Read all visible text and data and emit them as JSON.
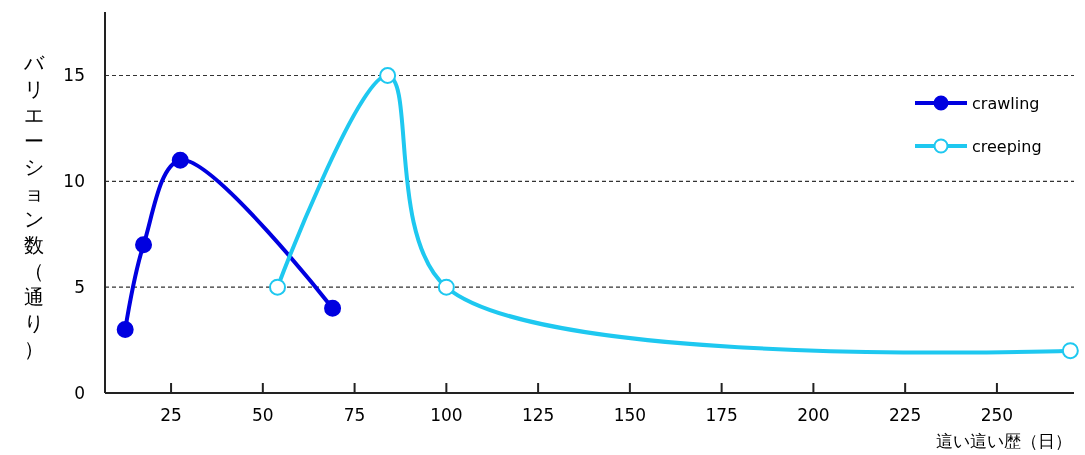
{
  "chart_data": {
    "type": "line",
    "xlabel": "這い這い歴（日）",
    "ylabel": "バリエーション数（通り）",
    "xlim": [
      7,
      271
    ],
    "xticks": [
      25,
      50,
      75,
      100,
      125,
      150,
      175,
      200,
      225,
      250
    ],
    "ylim": [
      0,
      18
    ],
    "yticks": [
      0,
      5,
      10,
      15
    ],
    "grid": "y",
    "legend": "top right",
    "series": [
      {
        "name": "crawling",
        "color": "#0000e0",
        "marker": "circle",
        "x": [
          12.5,
          17.5,
          27.5,
          69
        ],
        "values": [
          3,
          7,
          11,
          4
        ]
      },
      {
        "name": "creeping",
        "color": "#1ec8f0",
        "marker": "circle",
        "x": [
          54,
          84,
          100,
          270
        ],
        "values": [
          5,
          15,
          5,
          2
        ]
      }
    ]
  }
}
